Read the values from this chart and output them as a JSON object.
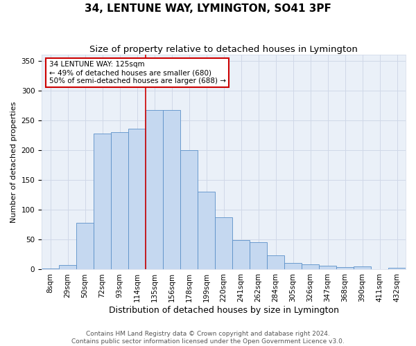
{
  "title": "34, LENTUNE WAY, LYMINGTON, SO41 3PF",
  "subtitle": "Size of property relative to detached houses in Lymington",
  "xlabel": "Distribution of detached houses by size in Lymington",
  "ylabel": "Number of detached properties",
  "bar_labels": [
    "8sqm",
    "29sqm",
    "50sqm",
    "72sqm",
    "93sqm",
    "114sqm",
    "135sqm",
    "156sqm",
    "178sqm",
    "199sqm",
    "220sqm",
    "241sqm",
    "262sqm",
    "284sqm",
    "305sqm",
    "326sqm",
    "347sqm",
    "368sqm",
    "390sqm",
    "411sqm",
    "432sqm"
  ],
  "bar_heights": [
    2,
    8,
    78,
    228,
    230,
    236,
    267,
    267,
    200,
    130,
    88,
    49,
    46,
    24,
    11,
    9,
    6,
    4,
    5,
    1,
    3
  ],
  "bar_color": "#c5d8f0",
  "bar_edge_color": "#5a90c8",
  "annotation_text": "34 LENTUNE WAY: 125sqm\n← 49% of detached houses are smaller (680)\n50% of semi-detached houses are larger (688) →",
  "annotation_box_color": "#ffffff",
  "annotation_box_edge_color": "#cc0000",
  "vline_color": "#cc0000",
  "vline_x_index": 5.5,
  "ylim": [
    0,
    360
  ],
  "yticks": [
    0,
    50,
    100,
    150,
    200,
    250,
    300,
    350
  ],
  "grid_color": "#d0d8e8",
  "background_color": "#eaf0f8",
  "footer_line1": "Contains HM Land Registry data © Crown copyright and database right 2024.",
  "footer_line2": "Contains public sector information licensed under the Open Government Licence v3.0.",
  "title_fontsize": 11,
  "subtitle_fontsize": 9.5,
  "xlabel_fontsize": 9,
  "ylabel_fontsize": 8,
  "tick_fontsize": 7.5,
  "annotation_fontsize": 7.5,
  "footer_fontsize": 6.5
}
